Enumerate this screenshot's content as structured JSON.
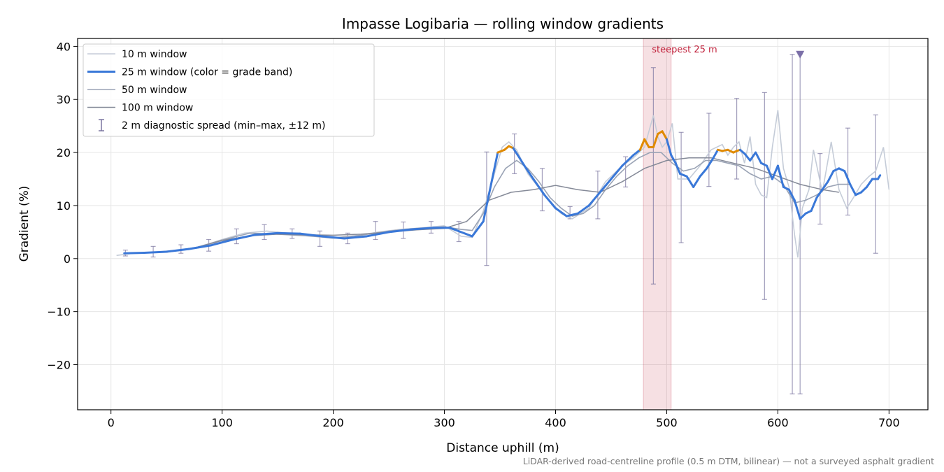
{
  "chart_data": {
    "type": "line",
    "title": "Impasse Logibaria — rolling window gradients",
    "xlabel": "Distance uphill (m)",
    "ylabel": "Gradient (%)",
    "xlim": [
      -30,
      735
    ],
    "ylim": [
      -28.5,
      41.5
    ],
    "xticks": [
      0,
      100,
      200,
      300,
      400,
      500,
      600,
      700
    ],
    "yticks": [
      -20,
      -10,
      0,
      10,
      20,
      30,
      40
    ],
    "xtick_labels": [
      "0",
      "100",
      "200",
      "300",
      "400",
      "500",
      "600",
      "700"
    ],
    "ytick_labels": [
      "−20",
      "−10",
      "0",
      "10",
      "20",
      "30",
      "40"
    ],
    "grid": true,
    "legend_position": "top-left",
    "note": "LiDAR-derived road-centreline profile (0.5 m DTM, bilinear) — not a surveyed asphalt gradient",
    "steepest_band": {
      "x0": 479,
      "x1": 504,
      "label": "steepest 25 m",
      "color": "#c0203a"
    },
    "marker": {
      "x": 620,
      "y": 38.5,
      "symbol": "triangle-down",
      "color": "#7b6fa8"
    },
    "grade_band_colors": {
      "normal": "#3a78d8",
      "steep": "#e08a00",
      "threshold": 20
    },
    "series": [
      {
        "name": "10 m window",
        "color": "#c5ccd8",
        "x": [
          5,
          20,
          40,
          60,
          80,
          100,
          120,
          140,
          160,
          180,
          200,
          220,
          240,
          260,
          280,
          300,
          315,
          325,
          335,
          345,
          352,
          358,
          365,
          375,
          390,
          405,
          415,
          430,
          445,
          460,
          470,
          480,
          488,
          492,
          496,
          500,
          505,
          510,
          520,
          530,
          540,
          550,
          555,
          560,
          565,
          570,
          575,
          580,
          585,
          590,
          595,
          600,
          605,
          610,
          615,
          618,
          622,
          628,
          632,
          640,
          648,
          655,
          662,
          668,
          675,
          682,
          688,
          695,
          700
        ],
        "y": [
          0.6,
          1.0,
          1.2,
          1.6,
          2.2,
          3.6,
          4.8,
          5.2,
          4.8,
          4.3,
          3.8,
          4.3,
          5.0,
          5.5,
          5.8,
          6.2,
          4.2,
          4.0,
          9.0,
          16.0,
          21.0,
          22.0,
          20.5,
          16.0,
          12.0,
          8.5,
          7.5,
          9.5,
          14.5,
          17.5,
          19.0,
          21.0,
          27.0,
          23.0,
          21.0,
          22.0,
          25.5,
          15.0,
          15.0,
          17.5,
          20.5,
          21.5,
          19.5,
          21.0,
          22.0,
          18.0,
          23.0,
          14.0,
          12.0,
          11.5,
          21.0,
          28.0,
          17.0,
          13.5,
          4.5,
          0.2,
          9.5,
          13.0,
          20.5,
          12.5,
          22.0,
          13.0,
          9.5,
          11.5,
          14.0,
          15.5,
          16.5,
          21.0,
          13.0
        ]
      },
      {
        "name": "25 m window (color = grade band)",
        "color": "#3a78d8",
        "x": [
          12,
          30,
          50,
          70,
          90,
          110,
          130,
          150,
          170,
          190,
          210,
          230,
          250,
          270,
          290,
          305,
          315,
          325,
          335,
          342,
          348,
          354,
          358,
          362,
          366,
          372,
          380,
          390,
          400,
          410,
          420,
          430,
          440,
          450,
          460,
          470,
          476,
          480,
          484,
          488,
          492,
          496,
          500,
          504,
          508,
          512,
          518,
          524,
          530,
          536,
          542,
          546,
          550,
          555,
          560,
          563,
          566,
          570,
          575,
          580,
          585,
          590,
          595,
          600,
          605,
          610,
          615,
          620,
          625,
          630,
          635,
          640,
          645,
          650,
          655,
          660,
          665,
          670,
          675,
          680,
          685,
          690,
          692
        ],
        "y": [
          1.0,
          1.1,
          1.3,
          1.8,
          2.5,
          3.6,
          4.5,
          4.8,
          4.7,
          4.2,
          3.8,
          4.2,
          5.0,
          5.5,
          5.8,
          5.8,
          5.0,
          4.2,
          7.0,
          14.0,
          20.0,
          20.5,
          21.2,
          20.8,
          19.5,
          17.5,
          15.0,
          12.0,
          9.5,
          8.0,
          8.5,
          10.0,
          12.5,
          15.0,
          17.5,
          19.5,
          20.5,
          22.5,
          21.0,
          21.0,
          23.5,
          24.0,
          22.5,
          19.5,
          18.0,
          16.0,
          15.5,
          13.5,
          15.5,
          17.0,
          19.0,
          20.5,
          20.3,
          20.5,
          20.0,
          20.3,
          20.5,
          19.8,
          18.5,
          20.0,
          18.0,
          17.5,
          15.0,
          17.5,
          13.5,
          13.0,
          11.0,
          7.5,
          8.5,
          9.0,
          11.5,
          13.0,
          14.5,
          16.5,
          17.0,
          16.5,
          14.0,
          12.0,
          12.5,
          13.5,
          15.0,
          15.0,
          15.7
        ]
      },
      {
        "name": "50 m window",
        "color": "#9aa3b5",
        "x": [
          25,
          50,
          75,
          100,
          125,
          150,
          175,
          200,
          225,
          250,
          275,
          300,
          315,
          325,
          335,
          345,
          355,
          365,
          375,
          385,
          395,
          405,
          415,
          425,
          435,
          445,
          455,
          465,
          475,
          485,
          495,
          505,
          515,
          525,
          535,
          545,
          555,
          565,
          575,
          585,
          595,
          605,
          615,
          625,
          635,
          645,
          655,
          665
        ],
        "y": [
          1.0,
          1.3,
          2.0,
          3.5,
          4.8,
          4.6,
          4.3,
          3.9,
          4.4,
          5.2,
          5.7,
          6.0,
          5.5,
          5.3,
          8.5,
          13.5,
          17.0,
          18.5,
          17.0,
          14.5,
          11.5,
          9.5,
          8.0,
          8.5,
          10.0,
          13.0,
          15.5,
          17.5,
          19.0,
          20.0,
          20.0,
          18.0,
          16.5,
          17.0,
          18.5,
          18.5,
          18.0,
          17.5,
          16.0,
          15.0,
          15.5,
          14.0,
          10.5,
          11.0,
          12.0,
          13.5,
          14.0,
          14.0
        ]
      },
      {
        "name": "100 m window",
        "color": "#858a98",
        "x": [
          50,
          75,
          100,
          125,
          150,
          175,
          200,
          225,
          250,
          275,
          300,
          320,
          340,
          360,
          380,
          400,
          420,
          440,
          460,
          480,
          500,
          520,
          540,
          560,
          580,
          600,
          620,
          640,
          655
        ],
        "y": [
          1.2,
          2.0,
          3.4,
          4.3,
          4.6,
          4.5,
          4.4,
          4.6,
          5.0,
          5.4,
          5.7,
          7.0,
          11.0,
          12.5,
          13.0,
          13.8,
          13.0,
          12.5,
          14.5,
          17.0,
          18.5,
          19.0,
          19.0,
          18.0,
          17.0,
          15.5,
          14.0,
          13.0,
          12.5
        ]
      },
      {
        "name": "2 m diagnostic spread (min–max, ±12 m)",
        "color": "#7a75a0",
        "type": "errorbar",
        "points": [
          {
            "x": 13,
            "low": 0.5,
            "high": 1.6
          },
          {
            "x": 38,
            "low": 0.3,
            "high": 2.3
          },
          {
            "x": 63,
            "low": 1.0,
            "high": 2.6
          },
          {
            "x": 88,
            "low": 1.4,
            "high": 3.6
          },
          {
            "x": 113,
            "low": 2.8,
            "high": 5.6
          },
          {
            "x": 138,
            "low": 3.6,
            "high": 6.4
          },
          {
            "x": 163,
            "low": 3.8,
            "high": 5.6
          },
          {
            "x": 188,
            "low": 2.3,
            "high": 5.2
          },
          {
            "x": 213,
            "low": 2.8,
            "high": 4.8
          },
          {
            "x": 238,
            "low": 3.6,
            "high": 7.0
          },
          {
            "x": 263,
            "low": 3.8,
            "high": 6.9
          },
          {
            "x": 288,
            "low": 4.8,
            "high": 7.0
          },
          {
            "x": 313,
            "low": 3.2,
            "high": 7.0
          },
          {
            "x": 338,
            "low": -1.3,
            "high": 20.1
          },
          {
            "x": 363,
            "low": 16.0,
            "high": 23.5
          },
          {
            "x": 388,
            "low": 9.0,
            "high": 17.0
          },
          {
            "x": 413,
            "low": 7.5,
            "high": 9.8
          },
          {
            "x": 438,
            "low": 7.5,
            "high": 16.5
          },
          {
            "x": 463,
            "low": 13.5,
            "high": 19.2
          },
          {
            "x": 488,
            "low": -4.8,
            "high": 36.0
          },
          {
            "x": 513,
            "low": 3.0,
            "high": 23.8
          },
          {
            "x": 538,
            "low": 13.6,
            "high": 27.4
          },
          {
            "x": 563,
            "low": 15.0,
            "high": 30.2
          },
          {
            "x": 588,
            "low": -7.7,
            "high": 31.3
          },
          {
            "x": 613,
            "low": -25.5,
            "high": 38.5
          },
          {
            "x": 620,
            "low": -25.5,
            "high": 38.5
          },
          {
            "x": 638,
            "low": 6.5,
            "high": 19.8
          },
          {
            "x": 663,
            "low": 8.2,
            "high": 24.6
          },
          {
            "x": 688,
            "low": 1.0,
            "high": 27.1
          }
        ]
      }
    ]
  }
}
